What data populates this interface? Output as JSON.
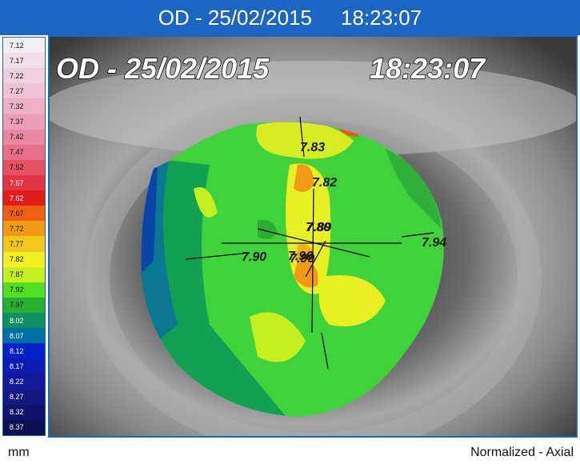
{
  "header": {
    "date": "OD - 25/02/2015",
    "time": "18:23:07"
  },
  "scale": {
    "items": [
      {
        "label": "7.12",
        "color": "#f3eef5"
      },
      {
        "label": "7.17",
        "color": "#f1dfea"
      },
      {
        "label": "7.22",
        "color": "#efd0e1"
      },
      {
        "label": "7.27",
        "color": "#eec1d5"
      },
      {
        "label": "7.32",
        "color": "#edb0c7"
      },
      {
        "label": "7.37",
        "color": "#ec9db7"
      },
      {
        "label": "7.42",
        "color": "#ea88a2"
      },
      {
        "label": "7.47",
        "color": "#e86f89"
      },
      {
        "label": "7.52",
        "color": "#e65262"
      },
      {
        "label": "7.57",
        "color": "#e33444"
      },
      {
        "label": "7.62",
        "color": "#e01c1c"
      },
      {
        "label": "7.67",
        "color": "#ef5f12"
      },
      {
        "label": "7.72",
        "color": "#f39a14"
      },
      {
        "label": "7.77",
        "color": "#f2c81c"
      },
      {
        "label": "7.82",
        "color": "#f3f022"
      },
      {
        "label": "7.87",
        "color": "#c6ef22"
      },
      {
        "label": "7.92",
        "color": "#52df22"
      },
      {
        "label": "7.97",
        "color": "#2aae32"
      },
      {
        "label": "8.02",
        "color": "#128f62"
      },
      {
        "label": "8.07",
        "color": "#0070a2"
      },
      {
        "label": "8.12",
        "color": "#0022c8"
      },
      {
        "label": "8.17",
        "color": "#0a1cb2"
      },
      {
        "label": "8.22",
        "color": "#12199a"
      },
      {
        "label": "8.27",
        "color": "#111882"
      },
      {
        "label": "8.32",
        "color": "#10146a"
      },
      {
        "label": "8.37",
        "color": "#0c1050"
      }
    ]
  },
  "image": {
    "date": "OD - 25/02/2015",
    "time": "18:23:07",
    "labels": [
      "7.83",
      "7.82",
      "7.80",
      "7.89",
      "7.90",
      "7.94",
      "7.96",
      "7.99"
    ]
  },
  "footer": {
    "unit": "mm",
    "mode": "Normalized - Axial"
  }
}
